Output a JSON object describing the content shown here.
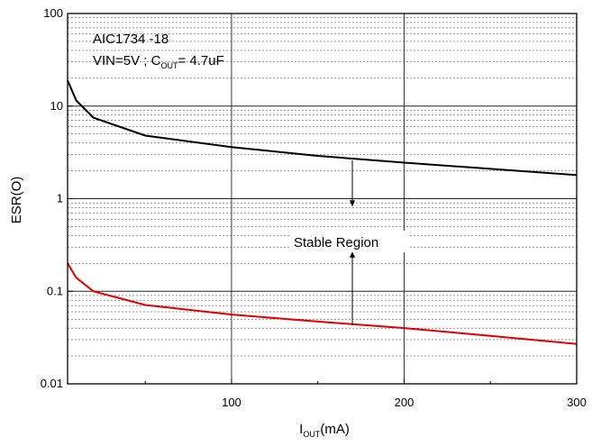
{
  "chart_data": {
    "type": "line",
    "title": "",
    "annotation_lines": [
      "AIC1734 -18",
      "VIN=5V ; C",
      "OUT",
      "= 4.7uF"
    ],
    "region_label": "Stable Region",
    "xlabel": {
      "main": "I",
      "sub": "OUT",
      "rest": "(mA)"
    },
    "ylabel": "ESR(O)",
    "xlim": [
      5,
      300
    ],
    "ylim": [
      0.01,
      100
    ],
    "y_scale": "log",
    "x_ticks": [
      100,
      200,
      300
    ],
    "x_tick_labels": [
      "100",
      "200",
      "300"
    ],
    "y_ticks": [
      0.01,
      0.1,
      1,
      10,
      100
    ],
    "y_tick_labels": [
      "0.01",
      "0.1",
      "1",
      "10",
      "100"
    ],
    "grid": true,
    "series": [
      {
        "color": "#000000",
        "x": [
          5,
          10,
          20,
          50,
          100,
          150,
          200,
          250,
          300
        ],
        "y": [
          19,
          11.5,
          7.5,
          4.8,
          3.6,
          2.9,
          2.45,
          2.1,
          1.8
        ]
      },
      {
        "color": "#dd0000",
        "x": [
          5,
          10,
          20,
          50,
          100,
          150,
          200,
          250,
          300
        ],
        "y": [
          0.2,
          0.14,
          0.1,
          0.071,
          0.056,
          0.047,
          0.04,
          0.033,
          0.027
        ]
      }
    ],
    "arrows": [
      {
        "x": 170,
        "y_from": 2.6,
        "y_to": 0.82
      },
      {
        "x": 170,
        "y_from": 0.043,
        "y_to": 0.27
      }
    ]
  }
}
